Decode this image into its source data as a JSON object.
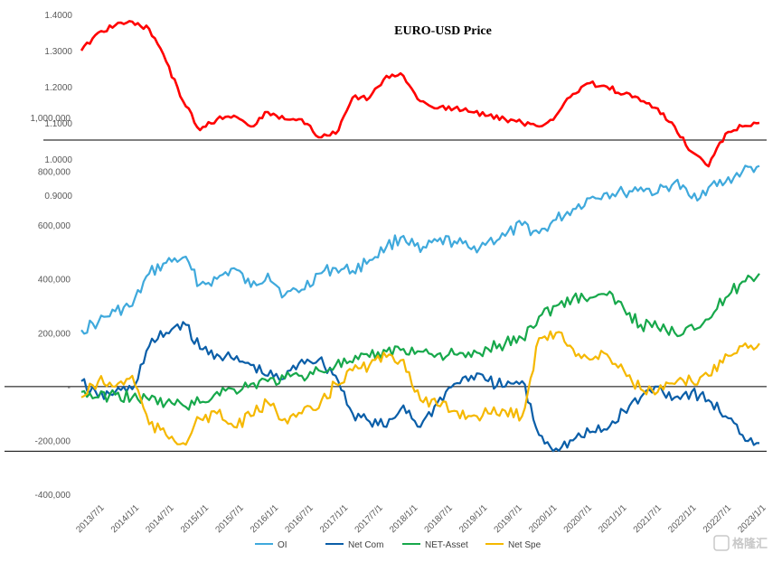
{
  "chart_data": [
    {
      "type": "line",
      "title": "EURO-USD Price",
      "ylim": [
        1.0,
        1.4
      ],
      "y_ticks": [
        "1.4000",
        "1.3000",
        "1.2000",
        "1.1000",
        "1.0000",
        "0.9000"
      ],
      "x": [
        "2013/7",
        "2013/10",
        "2014/1",
        "2014/4",
        "2014/7",
        "2014/10",
        "2015/1",
        "2015/4",
        "2015/7",
        "2015/10",
        "2016/1",
        "2016/4",
        "2016/7",
        "2016/10",
        "2017/1",
        "2017/4",
        "2017/7",
        "2017/10",
        "2018/1",
        "2018/4",
        "2018/7",
        "2018/10",
        "2019/1",
        "2019/4",
        "2019/7",
        "2019/10",
        "2020/1",
        "2020/4",
        "2020/7",
        "2020/10",
        "2021/1",
        "2021/4",
        "2021/7",
        "2021/10",
        "2022/1",
        "2022/4",
        "2022/7",
        "2022/10",
        "2023/1",
        "2023/4",
        "2023/6"
      ],
      "series": [
        {
          "color": "#ff0000",
          "values": [
            1.3,
            1.35,
            1.37,
            1.38,
            1.36,
            1.27,
            1.16,
            1.08,
            1.11,
            1.12,
            1.09,
            1.13,
            1.11,
            1.11,
            1.06,
            1.07,
            1.17,
            1.17,
            1.23,
            1.23,
            1.16,
            1.14,
            1.14,
            1.13,
            1.12,
            1.11,
            1.1,
            1.09,
            1.12,
            1.18,
            1.21,
            1.2,
            1.18,
            1.16,
            1.14,
            1.09,
            1.02,
            0.98,
            1.07,
            1.09,
            1.1
          ]
        }
      ]
    },
    {
      "type": "line",
      "ylim": [
        -400000,
        1000000
      ],
      "y_ticks": [
        "1,000,000",
        "800,000",
        "600,000",
        "400,000",
        "200,000",
        "-",
        "-200,000",
        "-400,000"
      ],
      "x_ticks": [
        "2013/7/1",
        "2014/1/1",
        "2014/7/1",
        "2015/1/1",
        "2015/7/1",
        "2016/1/1",
        "2016/7/1",
        "2017/1/1",
        "2017/7/1",
        "2018/1/1",
        "2018/7/1",
        "2019/1/1",
        "2019/7/1",
        "2020/1/1",
        "2020/7/1",
        "2021/1/1",
        "2021/7/1",
        "2022/1/1",
        "2022/7/1",
        "2023/1/1"
      ],
      "x": [
        "2013/7",
        "2013/10",
        "2014/1",
        "2014/4",
        "2014/7",
        "2014/10",
        "2015/1",
        "2015/4",
        "2015/7",
        "2015/10",
        "2016/1",
        "2016/4",
        "2016/7",
        "2016/10",
        "2017/1",
        "2017/4",
        "2017/7",
        "2017/10",
        "2018/1",
        "2018/4",
        "2018/7",
        "2018/10",
        "2019/1",
        "2019/4",
        "2019/7",
        "2019/10",
        "2020/1",
        "2020/4",
        "2020/7",
        "2020/10",
        "2021/1",
        "2021/4",
        "2021/7",
        "2021/10",
        "2022/1",
        "2022/4",
        "2022/7",
        "2022/10",
        "2023/1",
        "2023/4",
        "2023/6"
      ],
      "series": [
        {
          "name": "OI",
          "color": "#3fa9dc",
          "values": [
            210000,
            240000,
            280000,
            300000,
            420000,
            460000,
            480000,
            380000,
            400000,
            440000,
            370000,
            420000,
            340000,
            360000,
            420000,
            440000,
            430000,
            470000,
            520000,
            560000,
            500000,
            540000,
            540000,
            510000,
            540000,
            560000,
            600000,
            570000,
            620000,
            660000,
            700000,
            720000,
            720000,
            740000,
            720000,
            760000,
            700000,
            740000,
            760000,
            800000,
            820000
          ]
        },
        {
          "name": "Net Com",
          "color": "#0a5ea8",
          "values": [
            20000,
            -40000,
            -20000,
            -10000,
            150000,
            200000,
            240000,
            140000,
            120000,
            100000,
            80000,
            40000,
            30000,
            100000,
            100000,
            40000,
            -100000,
            -130000,
            -150000,
            -70000,
            -150000,
            -60000,
            10000,
            40000,
            20000,
            0,
            20000,
            -180000,
            -230000,
            -200000,
            -170000,
            -160000,
            -90000,
            -40000,
            0,
            -40000,
            -20000,
            -50000,
            -110000,
            -180000,
            -210000
          ]
        },
        {
          "name": "NET-Asset",
          "color": "#17a84b",
          "values": [
            -20000,
            -40000,
            -30000,
            -40000,
            -50000,
            -60000,
            -70000,
            -60000,
            -20000,
            -10000,
            10000,
            20000,
            30000,
            40000,
            60000,
            80000,
            90000,
            110000,
            130000,
            140000,
            130000,
            120000,
            120000,
            110000,
            140000,
            160000,
            180000,
            260000,
            300000,
            330000,
            330000,
            340000,
            290000,
            230000,
            220000,
            200000,
            230000,
            250000,
            330000,
            390000,
            420000
          ]
        },
        {
          "name": "Net Spe",
          "color": "#f5b800",
          "values": [
            -40000,
            20000,
            0,
            40000,
            -140000,
            -180000,
            -210000,
            -120000,
            -100000,
            -150000,
            -110000,
            -60000,
            -120000,
            -100000,
            -80000,
            10000,
            60000,
            80000,
            110000,
            100000,
            -50000,
            -70000,
            -90000,
            -110000,
            -100000,
            -90000,
            -110000,
            180000,
            200000,
            140000,
            100000,
            120000,
            60000,
            -10000,
            -20000,
            10000,
            20000,
            40000,
            120000,
            150000,
            160000
          ]
        }
      ],
      "reference_lines": [
        -240000,
        0
      ]
    }
  ],
  "legend": [
    "OI",
    "Net Com",
    "NET-Asset",
    "Net Spe"
  ],
  "watermark": "格隆汇"
}
